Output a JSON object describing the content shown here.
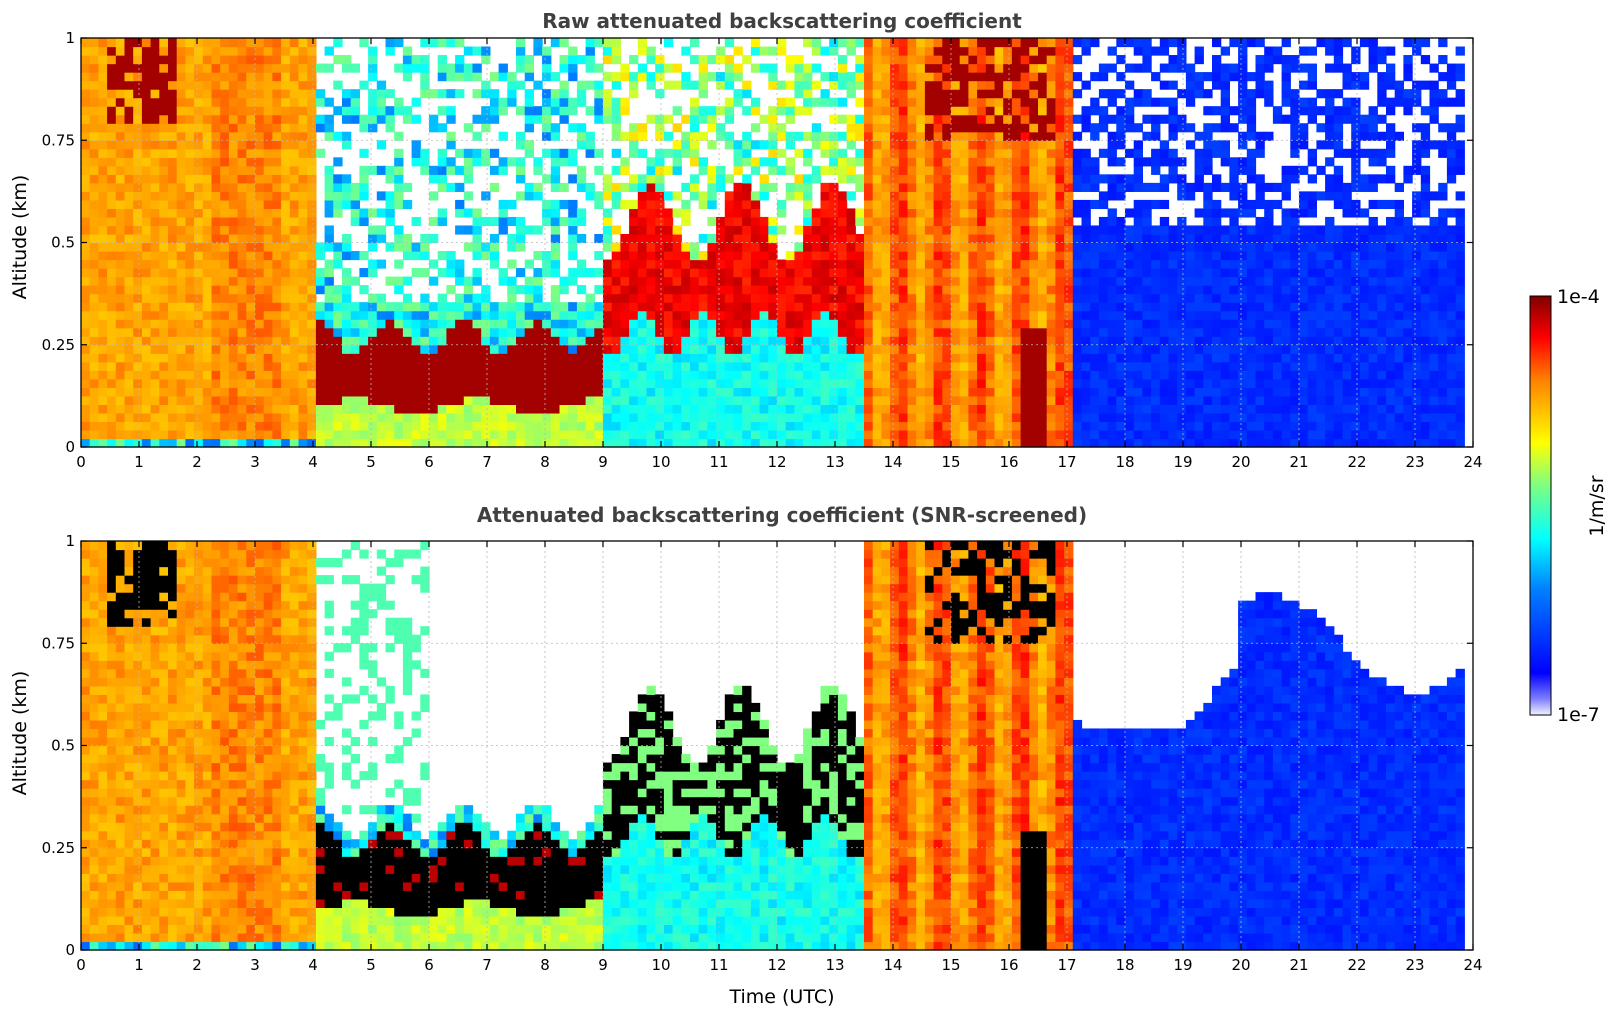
{
  "chart_data": [
    {
      "type": "heatmap",
      "title": "Raw attenuated backscattering coefficient",
      "xlabel": "",
      "ylabel": "Altitude (km)",
      "xlim": [
        0,
        24
      ],
      "ylim": [
        0,
        1
      ],
      "xticks": [
        "0",
        "1",
        "2",
        "3",
        "4",
        "5",
        "6",
        "7",
        "8",
        "9",
        "10",
        "11",
        "12",
        "13",
        "14",
        "15",
        "16",
        "17",
        "18",
        "19",
        "20",
        "21",
        "22",
        "23",
        "24"
      ],
      "yticks": [
        "0",
        "0.25",
        "0.5",
        "0.75",
        "1"
      ],
      "grid": true,
      "screened": false,
      "regions": [
        {
          "t": [
            0,
            4.1
          ],
          "pattern": "orange column full height (aerosol/fog)",
          "level": 0.78
        },
        {
          "t": [
            0.4,
            1.6
          ],
          "pattern": "dark red layer near top",
          "alt": [
            0.8,
            1.0
          ],
          "level": 0.97
        },
        {
          "t": [
            4.1,
            9.0
          ],
          "pattern": "dark red cloud layer",
          "alt": [
            0.1,
            0.3
          ],
          "level": 0.97
        },
        {
          "t": [
            4.1,
            9.0
          ],
          "pattern": "noisy/clear above layer",
          "alt": [
            0.3,
            1.0
          ],
          "level": 0.3
        },
        {
          "t": [
            9.0,
            13.5
          ],
          "pattern": "cyan boundary layer with dark red cloud tops",
          "alt": [
            0.25,
            0.6
          ],
          "level": 0.9
        },
        {
          "t": [
            13.5,
            17.1
          ],
          "pattern": "orange/red full-height columns",
          "level": 0.82
        },
        {
          "t": [
            17.1,
            23.8
          ],
          "pattern": "blue low-signal region, noisy above 0.5 km",
          "level": 0.22
        }
      ]
    },
    {
      "type": "heatmap",
      "title": "Attenuated backscattering coefficient (SNR-screened)",
      "xlabel": "Time (UTC)",
      "ylabel": "Altitude (km)",
      "xlim": [
        0,
        24
      ],
      "ylim": [
        0,
        1
      ],
      "xticks": [
        "0",
        "1",
        "2",
        "3",
        "4",
        "5",
        "6",
        "7",
        "8",
        "9",
        "10",
        "11",
        "12",
        "13",
        "14",
        "15",
        "16",
        "17",
        "18",
        "19",
        "20",
        "21",
        "22",
        "23",
        "24"
      ],
      "yticks": [
        "0",
        "0.25",
        "0.5",
        "0.75",
        "1"
      ],
      "grid": true,
      "screened": true,
      "regions": [
        {
          "t": [
            0,
            4.1
          ],
          "pattern": "orange column full height",
          "level": 0.78
        },
        {
          "t": [
            4.1,
            9.0
          ],
          "pattern": "black saturated cloud layer",
          "alt": [
            0.1,
            0.3
          ],
          "level": 1.0
        },
        {
          "t": [
            9.0,
            13.5
          ],
          "pattern": "cyan boundary layer with black cloud",
          "alt": [
            0.25,
            0.65
          ],
          "level": 0.88
        },
        {
          "t": [
            13.5,
            17.1
          ],
          "pattern": "orange/red full-height columns",
          "level": 0.82
        },
        {
          "t": [
            17.1,
            23.8
          ],
          "pattern": "blue region, screened above ~0.6-0.8 km",
          "level": 0.22
        }
      ]
    }
  ],
  "colorbar": {
    "max_label": "1e-4",
    "min_label": "1e-7",
    "label": "1/m/sr",
    "colormap": "jet"
  }
}
